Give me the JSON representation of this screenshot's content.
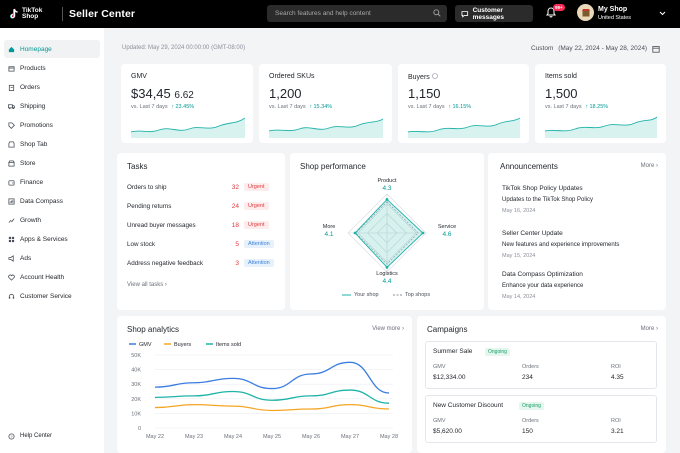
{
  "header": {
    "logo_line1": "TikTok",
    "logo_line2": "Shop",
    "title": "Seller Center",
    "search_placeholder": "Search features and help content",
    "customer_messages": "Customer messages",
    "notification_badge": "99+",
    "shop_name": "My Shop",
    "shop_region": "United States"
  },
  "sidebar": {
    "items": [
      {
        "label": "Homepage",
        "icon": "home-icon"
      },
      {
        "label": "Products",
        "icon": "box-icon"
      },
      {
        "label": "Orders",
        "icon": "clipboard-icon"
      },
      {
        "label": "Shipping",
        "icon": "truck-icon"
      },
      {
        "label": "Promotions",
        "icon": "tag-icon"
      },
      {
        "label": "Shop Tab",
        "icon": "shop-icon"
      },
      {
        "label": "Store",
        "icon": "store-icon"
      },
      {
        "label": "Finance",
        "icon": "wallet-icon"
      },
      {
        "label": "Data Compass",
        "icon": "compass-icon"
      },
      {
        "label": "Growth",
        "icon": "growth-icon"
      },
      {
        "label": "Apps & Services",
        "icon": "grid-icon"
      },
      {
        "label": "Ads",
        "icon": "ads-icon"
      },
      {
        "label": "Account Health",
        "icon": "heart-icon"
      },
      {
        "label": "Customer Service",
        "icon": "headset-icon"
      }
    ],
    "help": "Help Center"
  },
  "overview": {
    "updated": "Updated: May 29, 2024 00:00:00 (GMT-08:00)",
    "range_label": "Custom",
    "range_value": "(May 22, 2024 - May 28, 2024)"
  },
  "kpis": [
    {
      "label": "GMV",
      "value_main": "$34,45",
      "value_small": "6.62",
      "cmp": "vs. Last 7 days",
      "change": "↑ 23.45%"
    },
    {
      "label": "Ordered SKUs",
      "value_main": "1,200",
      "value_small": "",
      "cmp": "vs. Last 7 days",
      "change": "↑ 15.34%"
    },
    {
      "label": "Buyers",
      "value_main": "1,150",
      "value_small": "",
      "cmp": "vs. Last 7 days",
      "change": "↑ 16.15%"
    },
    {
      "label": "Items sold",
      "value_main": "1,500",
      "value_small": "",
      "cmp": "vs. Last 7 days",
      "change": "↑ 18.25%"
    }
  ],
  "tasks": {
    "title": "Tasks",
    "rows": [
      {
        "label": "Orders to ship",
        "count": "32",
        "tag": "Urgent",
        "kind": "urgent"
      },
      {
        "label": "Pending returns",
        "count": "24",
        "tag": "Urgent",
        "kind": "urgent"
      },
      {
        "label": "Unread buyer messages",
        "count": "18",
        "tag": "Urgent",
        "kind": "urgent"
      },
      {
        "label": "Low stock",
        "count": "5",
        "tag": "Attention",
        "kind": "attn"
      },
      {
        "label": "Address negative feedback",
        "count": "3",
        "tag": "Attention",
        "kind": "attn"
      }
    ],
    "view_all": "View all tasks"
  },
  "performance": {
    "title": "Shop performance",
    "axes": [
      {
        "name": "Product",
        "value": "4.3"
      },
      {
        "name": "Service",
        "value": "4.6"
      },
      {
        "name": "Logistics",
        "value": "4.4"
      },
      {
        "name": "More",
        "value": "4.1"
      }
    ],
    "legend_yours": "Your shop",
    "legend_top": "Top shops",
    "scores": [
      4.3,
      4.6,
      4.4,
      4.1
    ],
    "top_scores": [
      4.0,
      4.0,
      4.0,
      4.0
    ]
  },
  "announcements": {
    "title": "Announcements",
    "more": "More",
    "items": [
      {
        "title": "TikTok Shop Policy Updates",
        "desc": "Updates to the TikTok Shop Policy",
        "date": "May 16, 2024"
      },
      {
        "title": "Seller Center Update",
        "desc": "New features and experience improvements",
        "date": "May 15, 2024"
      },
      {
        "title": "Data Compass Optimization",
        "desc": "Enhance your data experience",
        "date": "May 14, 2024"
      }
    ]
  },
  "analytics": {
    "title": "Shop analytics",
    "view_more": "View more",
    "colors": {
      "gmv": "#3b7de0",
      "buyers": "#f5a524",
      "items": "#1fb3a8"
    }
  },
  "chart_data": {
    "type": "line",
    "categories": [
      "May 22",
      "May 23",
      "May 24",
      "May 25",
      "May 26",
      "May 27",
      "May 28"
    ],
    "series": [
      {
        "name": "GMV",
        "values": [
          28,
          31,
          34,
          27,
          37,
          45,
          24
        ]
      },
      {
        "name": "Buyers",
        "values": [
          14,
          16,
          15,
          12,
          13,
          16,
          13
        ]
      },
      {
        "name": "Items sold",
        "values": [
          21,
          22,
          25,
          19,
          22,
          26,
          17
        ]
      }
    ],
    "yticks": [
      "0",
      "10K",
      "20K",
      "30K",
      "40K",
      "50K"
    ],
    "ylim": [
      0,
      50
    ],
    "grid": true,
    "legend": "top-left"
  },
  "campaigns": {
    "title": "Campaigns",
    "more": "More",
    "items": [
      {
        "name": "Summer Sale",
        "status": "Ongoing",
        "gmv_label": "GMV",
        "gmv": "$12,334.00",
        "orders_label": "Orders",
        "orders": "234",
        "roi_label": "ROI",
        "roi": "4.35"
      },
      {
        "name": "New Customer Discount",
        "status": "Ongoing",
        "gmv_label": "GMV",
        "gmv": "$5,620.00",
        "orders_label": "Orders",
        "orders": "150",
        "roi_label": "ROI",
        "roi": "3.21"
      }
    ]
  }
}
